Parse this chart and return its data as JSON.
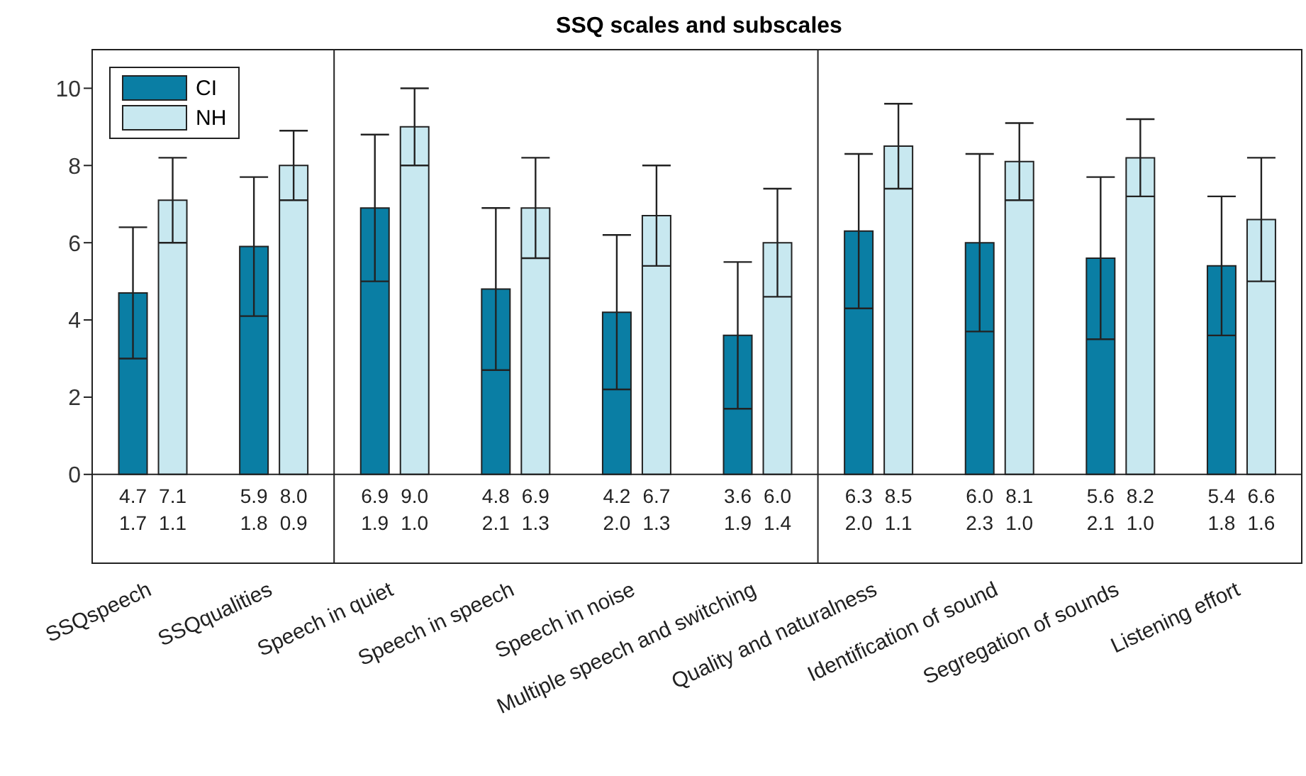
{
  "chart_data": {
    "type": "bar",
    "title": "SSQ scales and subscales",
    "categories": [
      "SSQspeech",
      "SSQqualities",
      "Speech in quiet",
      "Speech in speech",
      "Speech in noise",
      "Multiple speech and switching",
      "Quality and naturalness",
      "Identification of sound",
      "Segregation of sounds",
      "Listening effort"
    ],
    "series": [
      {
        "name": "CI",
        "color": "#0a7ea4",
        "values": [
          4.7,
          5.9,
          6.9,
          4.8,
          4.2,
          3.6,
          6.3,
          6.0,
          5.6,
          5.4
        ],
        "errors": [
          1.7,
          1.8,
          1.9,
          2.1,
          2.0,
          1.9,
          2.0,
          2.3,
          2.1,
          1.8
        ],
        "value_labels": [
          "4.7\n1.7",
          "5.9\n1.8",
          "6.9\n1.9",
          "4.8\n2.1",
          "4.2\n2.0",
          "3.6\n1.9",
          "6.3\n2.0",
          "6.0\n2.3",
          "5.6\n2.1",
          "5.4\n1.8"
        ]
      },
      {
        "name": "NH",
        "color": "#c8e8f0",
        "values": [
          7.1,
          8.0,
          9.0,
          6.9,
          6.7,
          6.0,
          8.5,
          8.1,
          8.2,
          6.6
        ],
        "errors": [
          1.1,
          0.9,
          1.0,
          1.3,
          1.3,
          1.4,
          1.1,
          1.0,
          1.0,
          1.6
        ],
        "value_labels": [
          "7.1\n1.1",
          "8.0\n0.9",
          "9.0\n1.0",
          "6.9\n1.3",
          "6.7\n1.3",
          "6.0\n1.4",
          "8.5\n1.1",
          "8.1\n1.0",
          "8.2\n1.0",
          "6.6\n1.6"
        ]
      }
    ],
    "ylim": [
      -2.3,
      11
    ],
    "yticks": [
      0,
      2,
      4,
      6,
      8,
      10
    ],
    "ref_lines": [
      {
        "axis": "y",
        "value": 0
      }
    ],
    "legend": "top left"
  }
}
